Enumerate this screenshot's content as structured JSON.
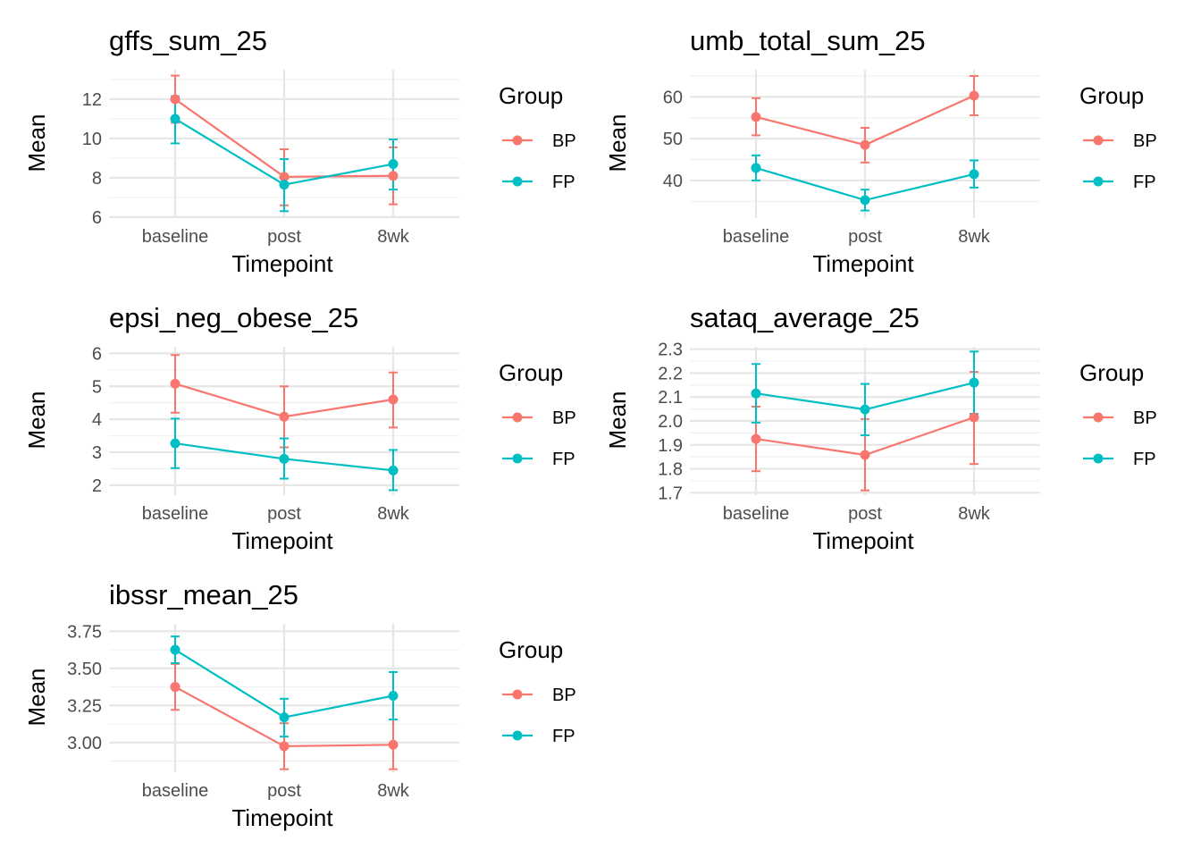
{
  "legend": {
    "title": "Group",
    "entries": [
      {
        "name": "BP",
        "color": "#F8766D"
      },
      {
        "name": "FP",
        "color": "#00BFC4"
      }
    ]
  },
  "chart_data": [
    {
      "type": "line",
      "title": "gffs_sum_25",
      "xlabel": "Timepoint",
      "ylabel": "Mean",
      "categories": [
        "baseline",
        "post",
        "8wk"
      ],
      "yticks": [
        6,
        8,
        10,
        12
      ],
      "ylim": [
        5.95,
        13.5
      ],
      "series": [
        {
          "name": "BP",
          "values": [
            12.0,
            8.05,
            8.1
          ],
          "lower": [
            10.8,
            6.6,
            6.65
          ],
          "upper": [
            13.2,
            9.45,
            9.55
          ]
        },
        {
          "name": "FP",
          "values": [
            11.0,
            7.65,
            8.7
          ],
          "lower": [
            9.75,
            6.3,
            7.4
          ],
          "upper": [
            12.15,
            8.95,
            9.95
          ]
        }
      ],
      "legend_position": "right"
    },
    {
      "type": "line",
      "title": "umb_total_sum_25",
      "xlabel": "Timepoint",
      "ylabel": "Mean",
      "categories": [
        "baseline",
        "post",
        "8wk"
      ],
      "yticks": [
        40,
        50,
        60
      ],
      "ylim": [
        31.0,
        66.5
      ],
      "series": [
        {
          "name": "BP",
          "values": [
            55.2,
            48.5,
            60.3
          ],
          "lower": [
            50.8,
            44.3,
            55.6
          ],
          "upper": [
            59.7,
            52.6,
            65.0
          ]
        },
        {
          "name": "FP",
          "values": [
            43.0,
            35.3,
            41.5
          ],
          "lower": [
            40.0,
            32.8,
            38.3
          ],
          "upper": [
            46.0,
            37.8,
            44.8
          ]
        }
      ],
      "legend_position": "right"
    },
    {
      "type": "line",
      "title": "epsi_neg_obese_25",
      "xlabel": "Timepoint",
      "ylabel": "Mean",
      "categories": [
        "baseline",
        "post",
        "8wk"
      ],
      "yticks": [
        2,
        3,
        4,
        5,
        6
      ],
      "ylim": [
        1.7,
        6.2
      ],
      "series": [
        {
          "name": "BP",
          "values": [
            5.08,
            4.08,
            4.6
          ],
          "lower": [
            4.2,
            3.15,
            3.75
          ],
          "upper": [
            5.95,
            5.0,
            5.42
          ]
        },
        {
          "name": "FP",
          "values": [
            3.27,
            2.8,
            2.45
          ],
          "lower": [
            2.52,
            2.2,
            1.85
          ],
          "upper": [
            4.02,
            3.42,
            3.07
          ]
        }
      ],
      "legend_position": "right"
    },
    {
      "type": "line",
      "title": "sataq_average_25",
      "xlabel": "Timepoint",
      "ylabel": "Mean",
      "categories": [
        "baseline",
        "post",
        "8wk"
      ],
      "yticks": [
        1.7,
        1.8,
        1.9,
        2.0,
        2.1,
        2.2,
        2.3
      ],
      "yticklabels": [
        "1.7",
        "1.8",
        "1.9",
        "2.0",
        "2.1",
        "2.2",
        "2.3"
      ],
      "ylim": [
        1.69,
        2.31
      ],
      "series": [
        {
          "name": "BP",
          "values": [
            1.925,
            1.858,
            2.015
          ],
          "lower": [
            1.79,
            1.71,
            1.82
          ],
          "upper": [
            2.06,
            2.008,
            2.205
          ]
        },
        {
          "name": "FP",
          "values": [
            2.115,
            2.048,
            2.16
          ],
          "lower": [
            1.993,
            1.94,
            2.03
          ],
          "upper": [
            2.238,
            2.155,
            2.29
          ]
        }
      ],
      "legend_position": "right"
    },
    {
      "type": "line",
      "title": "ibssr_mean_25",
      "xlabel": "Timepoint",
      "ylabel": "Mean",
      "categories": [
        "baseline",
        "post",
        "8wk"
      ],
      "yticks": [
        3.0,
        3.25,
        3.5,
        3.75
      ],
      "yticklabels": [
        "3.00",
        "3.25",
        "3.50",
        "3.75"
      ],
      "ylim": [
        2.8,
        3.8
      ],
      "series": [
        {
          "name": "BP",
          "values": [
            3.375,
            2.975,
            2.985
          ],
          "lower": [
            3.22,
            2.82,
            2.82
          ],
          "upper": [
            3.53,
            3.13,
            3.155
          ]
        },
        {
          "name": "FP",
          "values": [
            3.625,
            3.17,
            3.315
          ],
          "lower": [
            3.535,
            3.04,
            3.155
          ],
          "upper": [
            3.715,
            3.295,
            3.475
          ]
        }
      ],
      "legend_position": "right"
    }
  ]
}
